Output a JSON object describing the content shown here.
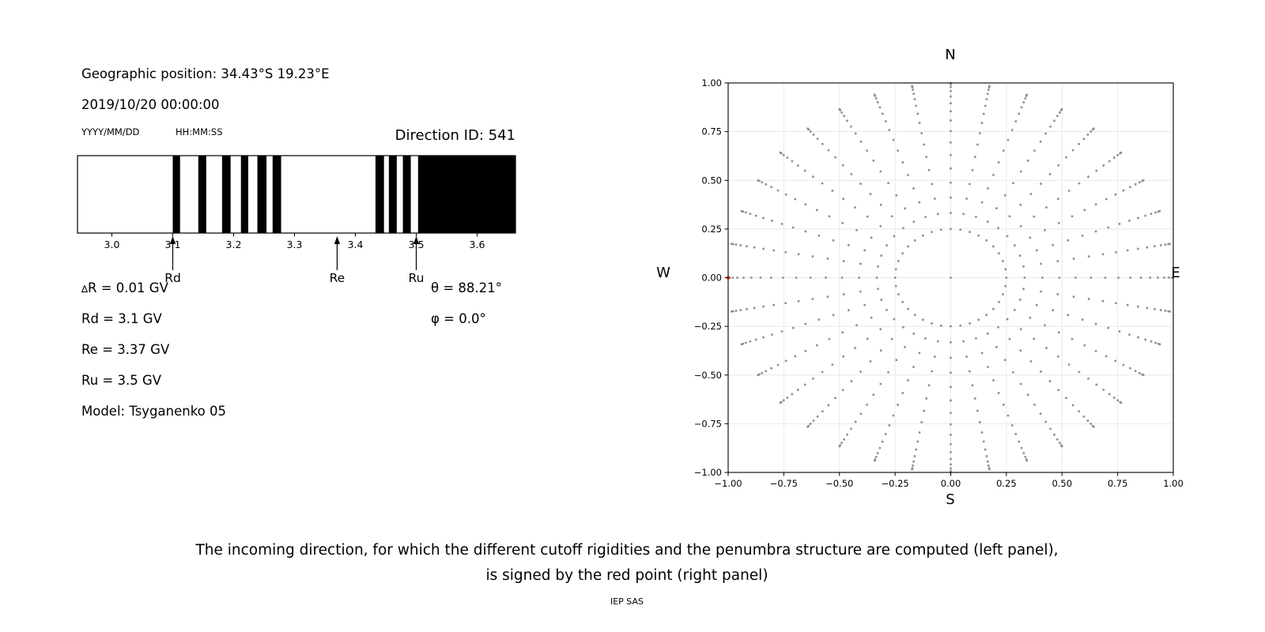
{
  "header": {
    "geographic_position": "Geographic position: 34.43°S 19.23°E",
    "datetime": "2019/10/20 00:00:00",
    "date_format_label": "YYYY/MM/DD",
    "time_format_label": "HH:MM:SS",
    "direction_id": "Direction ID: 541"
  },
  "params": {
    "delta_prefix": "∆",
    "delta_rest": "R = 0.01 GV",
    "rd": "Rd = 3.1 GV",
    "re": "Re = 3.37 GV",
    "ru": "Ru = 3.5 GV",
    "model": "Model: Tsyganenko 05",
    "theta": "θ = 88.21°",
    "phi": "φ = 0.0°"
  },
  "caption": {
    "line1": "The incoming direction, for which the different cutoff rigidities and the penumbra structure are computed (left panel),",
    "line2": "is signed by the red point (right panel)",
    "credit": "IEP SAS"
  },
  "chart_data": [
    {
      "type": "bar",
      "id": "penumbra-barcode",
      "title": "cutoff penumbra structure: black bands = forbidden rigidities, white = allowed",
      "xlim": [
        2.9435,
        3.663
      ],
      "x_ticks": [
        3.0,
        3.1,
        3.2,
        3.3,
        3.4,
        3.5,
        3.6
      ],
      "x_tick_labels": [
        "3.0",
        "3.1",
        "3.2",
        "3.3",
        "3.4",
        "3.5",
        "3.6"
      ],
      "x_unit": "GV",
      "forbidden_bands_gv": [
        [
          3.1,
          3.112
        ],
        [
          3.142,
          3.155
        ],
        [
          3.181,
          3.195
        ],
        [
          3.212,
          3.224
        ],
        [
          3.239,
          3.254
        ],
        [
          3.264,
          3.278
        ],
        [
          3.433,
          3.447
        ],
        [
          3.455,
          3.468
        ],
        [
          3.478,
          3.491
        ],
        [
          3.503,
          3.663
        ]
      ],
      "markers": [
        {
          "label": "Rd",
          "gv": 3.1
        },
        {
          "label": "Re",
          "gv": 3.37
        },
        {
          "label": "Ru",
          "gv": 3.5
        }
      ],
      "bar_color": "#000000"
    },
    {
      "type": "scatter",
      "id": "direction-grid",
      "compass": {
        "top": "N",
        "bottom": "S",
        "left": "W",
        "right": "E"
      },
      "xlim": [
        -1,
        1
      ],
      "ylim": [
        -1,
        1
      ],
      "tick_values": [
        -1.0,
        -0.75,
        -0.5,
        -0.25,
        0.0,
        0.25,
        0.5,
        0.75,
        1.0
      ],
      "tick_labels": [
        "−1.00",
        "−0.75",
        "−0.50",
        "−0.25",
        "0.00",
        "0.25",
        "0.50",
        "0.75",
        "1.00"
      ],
      "grid": true,
      "grid_color": "#e8e8e8",
      "point_color": "#8e8e8e",
      "points_spec": {
        "description": "radial grid of sampled incoming directions: x,y = sin(zenith)·(cos(az),sin(az))",
        "azimuth_start_deg": 0,
        "azimuth_step_deg": 10,
        "azimuth_count": 36,
        "zenith_min_deg": 14.47,
        "zenith_max_deg": 88.21,
        "zenith_count": 16,
        "center_point": true
      },
      "highlight_point": {
        "x": -0.9995,
        "y": 0.0,
        "color": "#d40000"
      }
    }
  ]
}
